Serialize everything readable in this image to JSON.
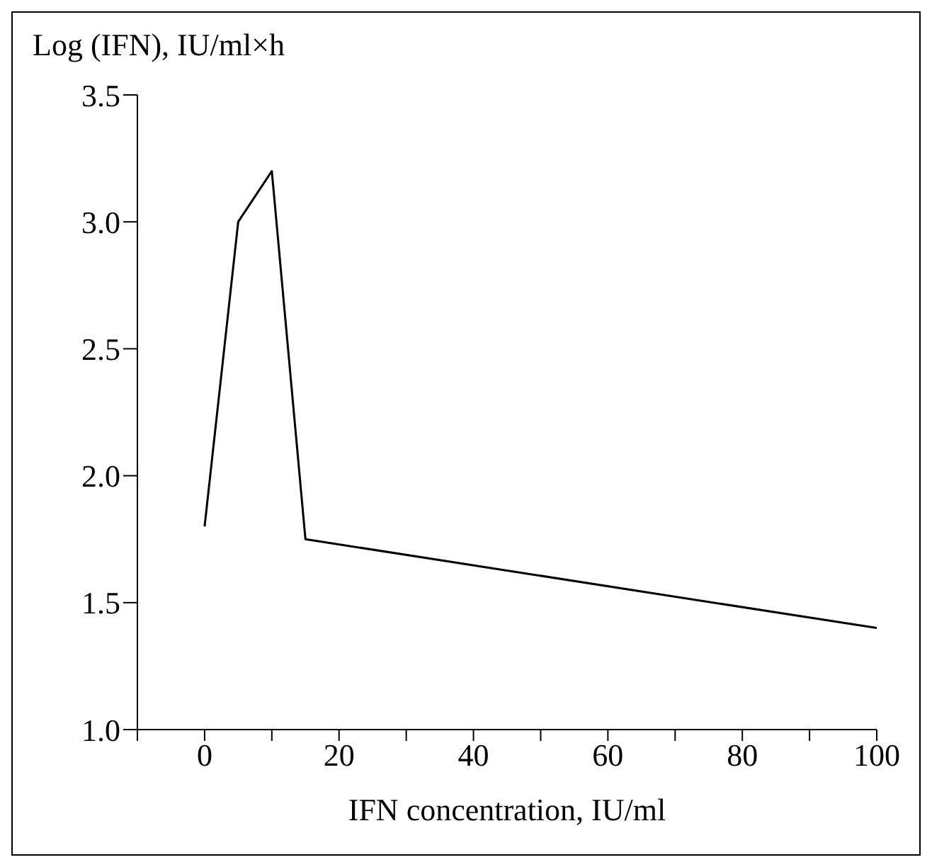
{
  "chart_data": {
    "type": "line",
    "xlabel": "IFN concentration, IU/ml",
    "ylabel": "Log (IFN), IU/ml×h",
    "x": [
      0,
      5,
      10,
      15,
      100
    ],
    "series": [
      {
        "color": "#000000",
        "values": [
          1.8,
          3.0,
          3.2,
          1.75,
          1.4
        ]
      }
    ],
    "xlim": [
      -10,
      100
    ],
    "xticks": [
      {
        "value": -10,
        "label": null
      },
      0,
      {
        "value": 10,
        "label": null
      },
      20,
      {
        "value": 30,
        "label": null
      },
      40,
      {
        "value": 50,
        "label": null
      },
      60,
      {
        "value": 70,
        "label": null
      },
      80,
      {
        "value": 90,
        "label": null
      },
      100
    ],
    "ylim": [
      1.0,
      3.5
    ],
    "yticks": [
      {
        "value": 1.0,
        "label": "1.0"
      },
      {
        "value": 1.5,
        "label": "1.5"
      },
      {
        "value": 2.0,
        "label": "2.0"
      },
      {
        "value": 2.5,
        "label": "2.5"
      },
      {
        "value": 3.0,
        "label": "3.0"
      },
      {
        "value": 3.5,
        "label": "3.5"
      }
    ],
    "grid": false,
    "legend": false,
    "marker": "none",
    "line_style": "solid"
  }
}
